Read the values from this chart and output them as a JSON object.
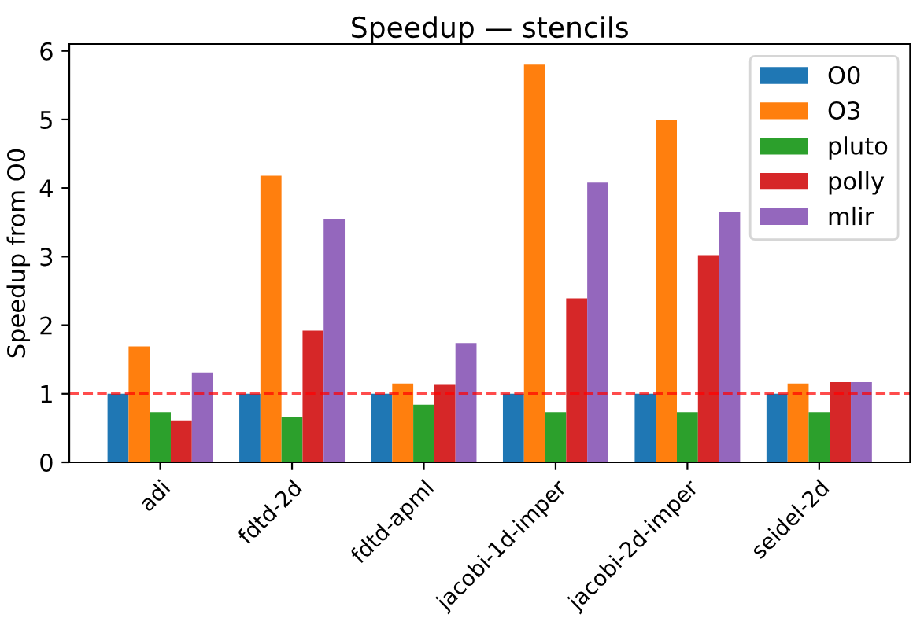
{
  "chart_data": {
    "type": "bar",
    "title": "Speedup — stencils",
    "ylabel": "Speedup from O0",
    "categories": [
      "adi",
      "fdtd-2d",
      "fdtd-apml",
      "jacobi-1d-imper",
      "jacobi-2d-imper",
      "seidel-2d"
    ],
    "series": [
      {
        "name": "O0",
        "color": "#1f77b4",
        "values": [
          1,
          1,
          1,
          1,
          1,
          1
        ]
      },
      {
        "name": "O3",
        "color": "#ff7f0e",
        "values": [
          1.69,
          4.18,
          1.15,
          5.8,
          4.99,
          1.15
        ]
      },
      {
        "name": "pluto",
        "color": "#2ca02c",
        "values": [
          0.73,
          0.66,
          0.84,
          0.73,
          0.73,
          0.73
        ]
      },
      {
        "name": "polly",
        "color": "#d62728",
        "values": [
          0.61,
          1.92,
          1.13,
          2.39,
          3.02,
          1.17
        ]
      },
      {
        "name": "mlir",
        "color": "#9467bd",
        "values": [
          1.31,
          3.55,
          1.74,
          4.08,
          3.65,
          1.17
        ]
      }
    ],
    "ylim": [
      0,
      6.1
    ],
    "yticks": [
      0,
      1,
      2,
      3,
      4,
      5,
      6
    ],
    "ref_lines": [
      {
        "axis": "y",
        "value": 1,
        "color": "#ff0000",
        "line_style": "dashed"
      }
    ],
    "legend": "top right",
    "grid": false
  }
}
